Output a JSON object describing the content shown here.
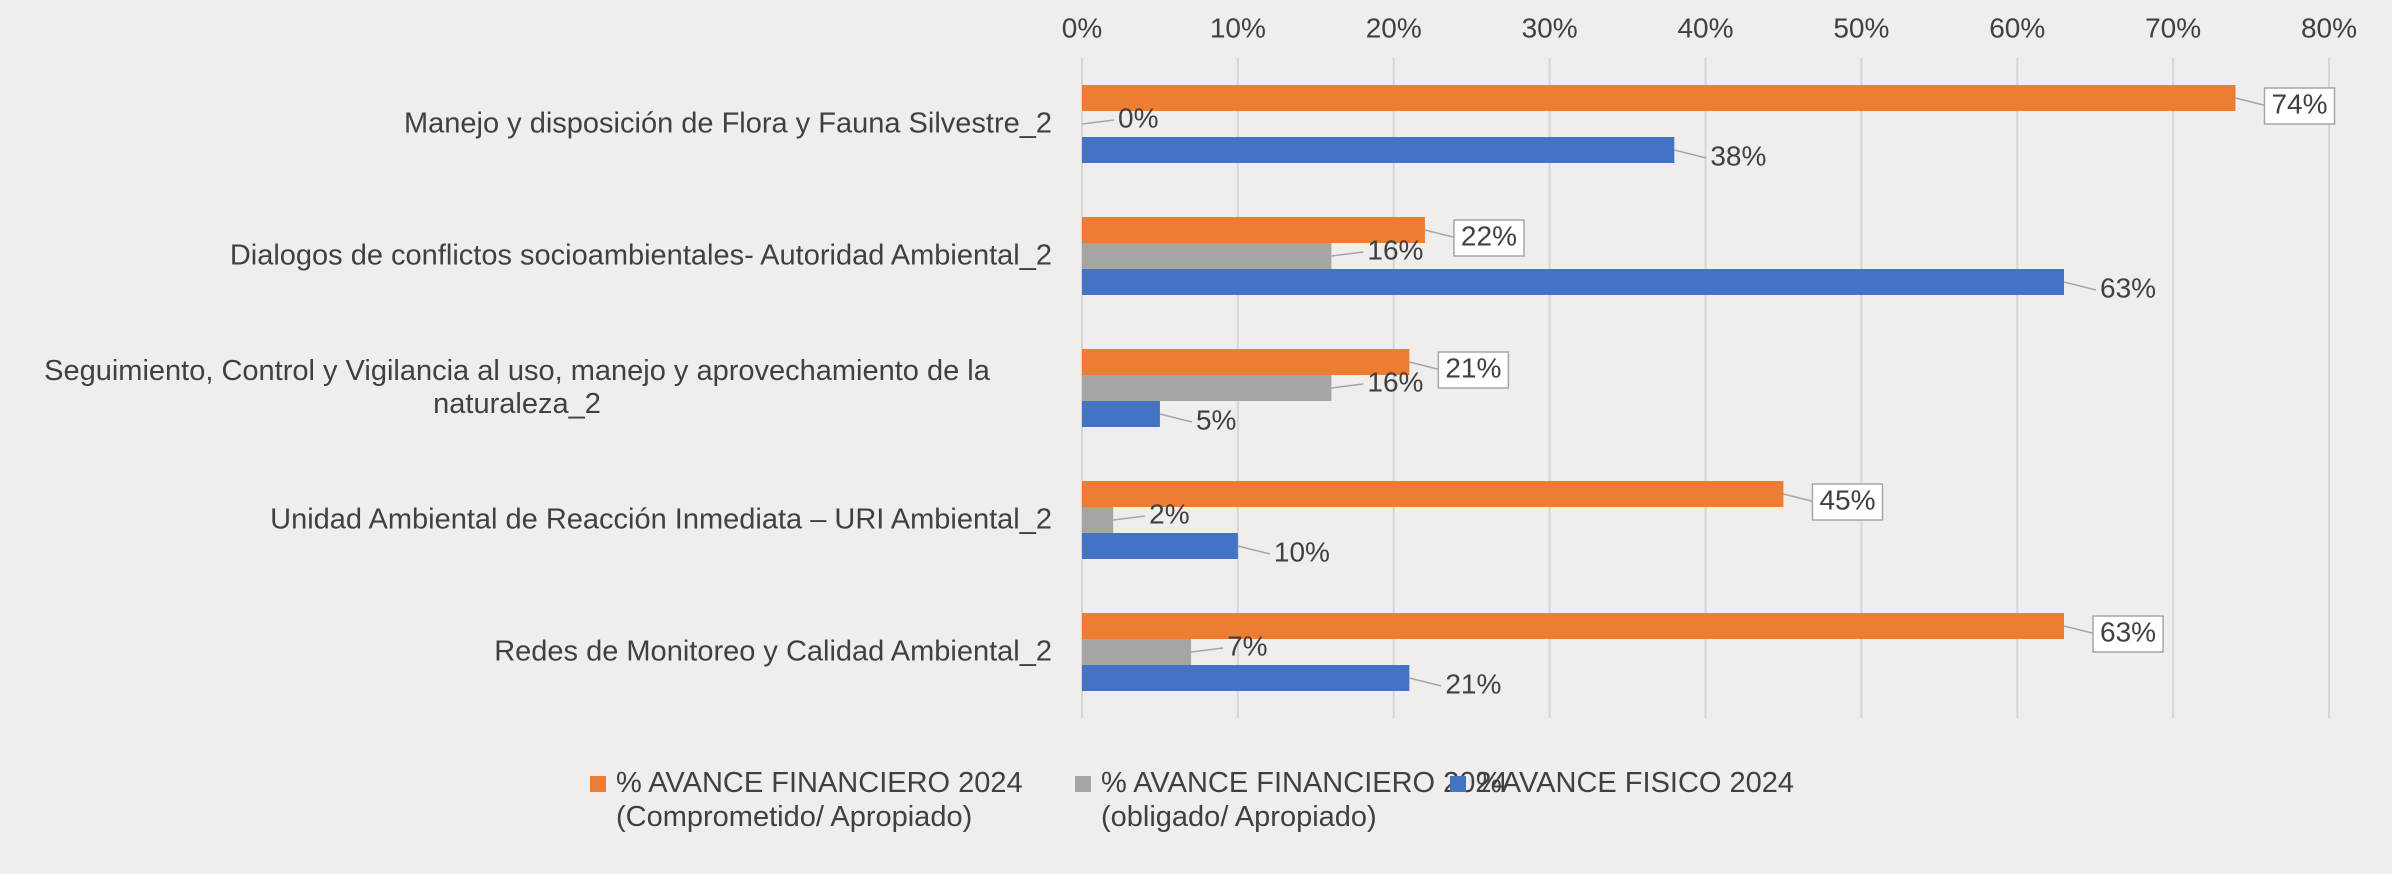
{
  "chart_data": {
    "type": "barh",
    "categories": [
      "Manejo y disposición de Flora y Fauna Silvestre_2",
      "Dialogos de conflictos socioambientales- Autoridad Ambiental_2",
      "Seguimiento, Control y Vigilancia al uso, manejo y aprovechamiento de la naturaleza_2",
      "Unidad Ambiental de Reacción Inmediata – URI Ambiental_2",
      "Redes de Monitoreo y Calidad Ambiental_2"
    ],
    "series": [
      {
        "name": "% AVANCE FINANCIERO 2024 (Comprometido/ Apropiado)",
        "color": "#ED7D31",
        "values": [
          74,
          22,
          21,
          45,
          63
        ],
        "value_labels": [
          "74%",
          "22%",
          "21%",
          "45%",
          "63%"
        ]
      },
      {
        "name": "% AVANCE FINANCIERO 2024 (obligado/ Apropiado)",
        "color": "#A5A5A5",
        "values": [
          0,
          16,
          16,
          2,
          7
        ],
        "value_labels": [
          "0%",
          "16%",
          "16%",
          "2%",
          "7%"
        ]
      },
      {
        "name": "%AVANCE FISICO 2024",
        "color": "#4472C4",
        "values": [
          38,
          63,
          5,
          10,
          21
        ],
        "value_labels": [
          "38%",
          "63%",
          "5%",
          "10%",
          "21%"
        ]
      }
    ],
    "xlim": [
      0,
      80
    ],
    "xticks": [
      {
        "value": 0,
        "label": "0%"
      },
      {
        "value": 10,
        "label": "10%"
      },
      {
        "value": 20,
        "label": "20%"
      },
      {
        "value": 30,
        "label": "30%"
      },
      {
        "value": 40,
        "label": "40%"
      },
      {
        "value": 50,
        "label": "50%"
      },
      {
        "value": 60,
        "label": "60%"
      },
      {
        "value": 70,
        "label": "70%"
      },
      {
        "value": 80,
        "label": "80%"
      }
    ],
    "grid": true,
    "legend": "bottom"
  }
}
